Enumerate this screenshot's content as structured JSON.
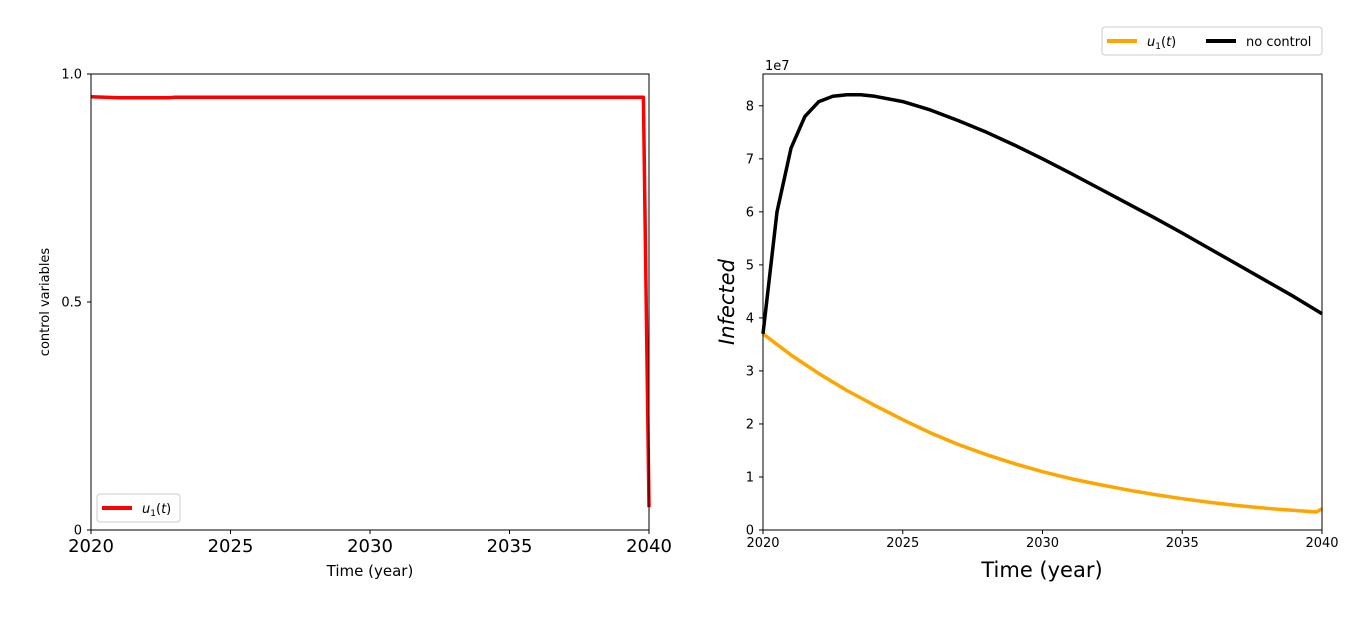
{
  "chart_data": [
    {
      "type": "line",
      "xlabel": "Time (year)",
      "ylabel": "control variables",
      "xlim": [
        2020,
        2040
      ],
      "ylim": [
        0,
        1
      ],
      "xticks": [
        "2020",
        "2025",
        "2030",
        "2035",
        "2040"
      ],
      "yticks": [
        "0",
        "0.5",
        "1.0"
      ],
      "legend_position": "lower-left",
      "series": [
        {
          "name": "u1(t)",
          "color": "#ff0000",
          "x": [
            2020,
            2021,
            2022,
            2022.8,
            2023,
            2025,
            2030,
            2035,
            2039.5,
            2039.8,
            2039.9,
            2040
          ],
          "y": [
            0.95,
            0.948,
            0.948,
            0.948,
            0.949,
            0.949,
            0.949,
            0.949,
            0.949,
            0.949,
            0.5,
            0.05
          ]
        }
      ]
    },
    {
      "type": "line",
      "xlabel": "Time (year)",
      "ylabel": "Infected",
      "y_scale_note": "1e7",
      "xlim": [
        2020,
        2040
      ],
      "ylim": [
        0,
        86000000
      ],
      "xticks": [
        "2020",
        "2025",
        "2030",
        "2035",
        "2040"
      ],
      "yticks": [
        "0",
        "1",
        "2",
        "3",
        "4",
        "5",
        "6",
        "7",
        "8"
      ],
      "legend_position": "above top-right",
      "series": [
        {
          "name": "u1(t)",
          "color": "#ffa500",
          "x": [
            2020,
            2021,
            2022,
            2023,
            2024,
            2025,
            2026,
            2027,
            2028,
            2029,
            2030,
            2031,
            2032,
            2033,
            2034,
            2035,
            2036,
            2037,
            2038,
            2039,
            2039.8,
            2040
          ],
          "y": [
            37000000,
            33000000,
            29500000,
            26300000,
            23500000,
            20800000,
            18300000,
            16100000,
            14200000,
            12500000,
            11000000,
            9700000,
            8600000,
            7600000,
            6700000,
            5900000,
            5200000,
            4600000,
            4100000,
            3700000,
            3400000,
            4000000
          ]
        },
        {
          "name": "no control",
          "color": "#000000",
          "x": [
            2020,
            2020.5,
            2021,
            2021.5,
            2022,
            2022.5,
            2023,
            2023.5,
            2024,
            2025,
            2026,
            2027,
            2028,
            2029,
            2030,
            2031,
            2032,
            2033,
            2034,
            2035,
            2036,
            2037,
            2038,
            2039,
            2040
          ],
          "y": [
            37000000,
            60000000,
            72000000,
            78000000,
            80800000,
            81800000,
            82100000,
            82100000,
            81800000,
            80800000,
            79200000,
            77200000,
            75000000,
            72600000,
            70000000,
            67300000,
            64500000,
            61700000,
            58900000,
            56000000,
            53000000,
            50000000,
            47000000,
            44000000,
            40800000
          ]
        }
      ]
    }
  ],
  "chart1": {
    "xlabel": "Time (year)",
    "ylabel": "control variables",
    "legend_label": "u1(t)"
  },
  "chart2": {
    "xlabel": "Time (year)",
    "ylabel": "Infected",
    "offset_label": "1e7",
    "legend_label_1": "u1(t)",
    "legend_label_2": "no control"
  }
}
